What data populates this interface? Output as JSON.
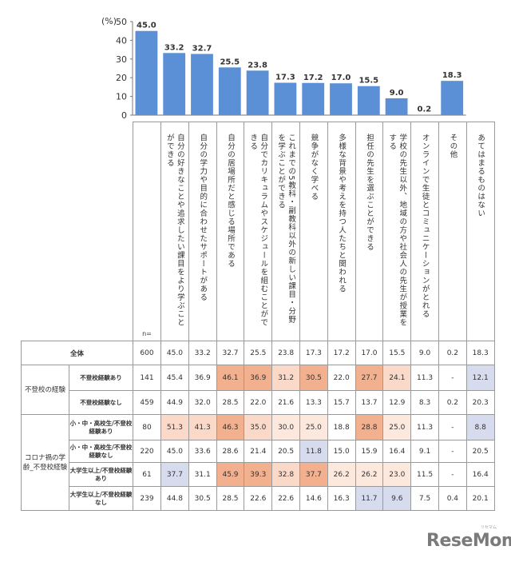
{
  "chart_data": {
    "type": "bar",
    "ylabel": "(%)",
    "ylim": [
      0,
      50
    ],
    "yticks": [
      0,
      10,
      20,
      30,
      40,
      50
    ],
    "bar_color": "#5b8fd6",
    "categories": [
      "自分の好きなことや追求したい課目をより学ぶことができる",
      "自分の学力や目的に合わせたサポートがある",
      "自分の居場所だと感じる場所である",
      "自分でカリキュラムやスケジュールを組むことができる",
      "これまでの5教科・副教科以外の新しい課目・分野を学ぶことができる",
      "競争がなく学べる",
      "多様な背景や考えを持つ人たちと関われる",
      "担任の先生を選ぶことができる",
      "学校の先生以外、地域の方や社会人の先生が授業をする",
      "オンラインで生徒とコミュニケーションがとれる",
      "その他",
      "あてはまるものはない"
    ],
    "values": [
      45.0,
      33.2,
      32.7,
      25.5,
      23.8,
      17.3,
      17.2,
      17.0,
      15.5,
      9.0,
      0.2,
      18.3
    ]
  },
  "table": {
    "n_label": "n=",
    "rows": [
      {
        "group": "",
        "label": "全体",
        "n": "600",
        "cells": [
          "45.0",
          "33.2",
          "32.7",
          "25.5",
          "23.8",
          "17.3",
          "17.2",
          "17.0",
          "15.5",
          "9.0",
          "0.2",
          "18.3"
        ],
        "colors": [
          "",
          "",
          "",
          "",
          "",
          "",
          "",
          "",
          "",
          "",
          "",
          ""
        ]
      },
      {
        "group": "不登校の経験",
        "group_span": 2,
        "label": "不登校経験あり",
        "n": "141",
        "cells": [
          "45.4",
          "36.9",
          "46.1",
          "36.9",
          "31.2",
          "30.5",
          "22.0",
          "27.7",
          "24.1",
          "11.3",
          "-",
          "12.1"
        ],
        "colors": [
          "",
          "",
          "#f2b08e",
          "#f2b08e",
          "#fbd9c8",
          "#f2b08e",
          "",
          "#f2b08e",
          "#fbd9c8",
          "",
          "",
          "#d7dbee"
        ]
      },
      {
        "group": null,
        "label": "不登校経験なし",
        "n": "459",
        "cells": [
          "44.9",
          "32.0",
          "28.5",
          "22.0",
          "21.6",
          "13.3",
          "15.7",
          "13.7",
          "12.9",
          "8.3",
          "0.2",
          "20.3"
        ],
        "colors": [
          "",
          "",
          "",
          "",
          "",
          "",
          "",
          "",
          "",
          "",
          "",
          ""
        ]
      },
      {
        "group": "コロナ禍の学齢_不登校経験",
        "group_span": 4,
        "label": "小・中・高校生/不登校経験あり",
        "n": "80",
        "cells": [
          "51.3",
          "41.3",
          "46.3",
          "35.0",
          "30.0",
          "25.0",
          "18.8",
          "28.8",
          "25.0",
          "11.3",
          "-",
          "8.8"
        ],
        "colors": [
          "#fbd9c8",
          "#fbd9c8",
          "#f2b08e",
          "#fbd9c8",
          "#fde8de",
          "#fde8de",
          "",
          "#f2b08e",
          "#fde8de",
          "",
          "",
          "#d7dbee"
        ]
      },
      {
        "group": null,
        "label": "小・中・高校生/不登校経験なし",
        "n": "220",
        "cells": [
          "45.0",
          "33.6",
          "28.6",
          "21.4",
          "20.5",
          "11.8",
          "15.0",
          "15.9",
          "16.4",
          "9.1",
          "-",
          "20.5"
        ],
        "colors": [
          "",
          "",
          "",
          "",
          "",
          "#d7dbee",
          "",
          "",
          "",
          "",
          "",
          ""
        ]
      },
      {
        "group": null,
        "label": "大学生以上/不登校経験あり",
        "n": "61",
        "cells": [
          "37.7",
          "31.1",
          "45.9",
          "39.3",
          "32.8",
          "37.7",
          "26.2",
          "26.2",
          "23.0",
          "11.5",
          "-",
          "16.4"
        ],
        "colors": [
          "#d7dbee",
          "",
          "#f2b08e",
          "#f2b08e",
          "#fbd9c8",
          "#f2b08e",
          "#fde8de",
          "#fde8de",
          "#fde8de",
          "",
          "",
          ""
        ]
      },
      {
        "group": null,
        "label": "大学生以上/不登校経験なし",
        "n": "239",
        "cells": [
          "44.8",
          "30.5",
          "28.5",
          "22.6",
          "22.6",
          "14.6",
          "16.3",
          "11.7",
          "9.6",
          "7.5",
          "0.4",
          "20.1"
        ],
        "colors": [
          "",
          "",
          "",
          "",
          "",
          "",
          "",
          "#d7dbee",
          "#d7dbee",
          "",
          "",
          ""
        ]
      }
    ]
  },
  "logo": {
    "text": "ReseMom",
    "sub": "リセマム"
  }
}
